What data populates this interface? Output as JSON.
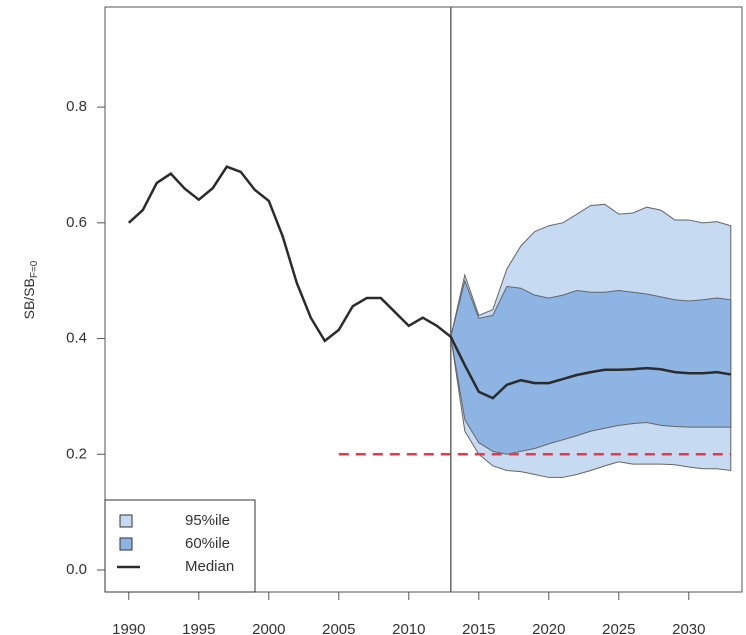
{
  "chart_data": {
    "type": "projection",
    "ylabel": "SB/SB",
    "ylabel_sub": "F=0",
    "xlim": [
      1988.3,
      2033.8
    ],
    "ylim": [
      -0.038,
      0.973
    ],
    "xticks": [
      1990,
      1995,
      2000,
      2005,
      2010,
      2015,
      2020,
      2025,
      2030
    ],
    "yticks": [
      {
        "value": 0,
        "label": "0.0"
      },
      0.2,
      0.4,
      0.6,
      0.8
    ],
    "vline": 2013,
    "reference_line": {
      "value": 0.2,
      "x": [
        2005,
        2033
      ],
      "color": "#e8384f"
    },
    "bands": [
      {
        "name": "95%ile",
        "color": "#c6daf2",
        "x": [
          2013,
          2014,
          2015,
          2016,
          2017,
          2018,
          2019,
          2020,
          2021,
          2022,
          2023,
          2024,
          2025,
          2026,
          2027,
          2028,
          2029,
          2030,
          2031,
          2032,
          2033
        ],
        "upper": [
          0.403,
          0.51,
          0.44,
          0.45,
          0.52,
          0.56,
          0.585,
          0.595,
          0.6,
          0.615,
          0.63,
          0.632,
          0.615,
          0.617,
          0.627,
          0.622,
          0.605,
          0.605,
          0.6,
          0.602,
          0.595
        ],
        "lower": [
          0.403,
          0.24,
          0.2,
          0.18,
          0.172,
          0.17,
          0.165,
          0.16,
          0.16,
          0.165,
          0.172,
          0.18,
          0.187,
          0.183,
          0.183,
          0.183,
          0.182,
          0.178,
          0.175,
          0.175,
          0.172
        ]
      },
      {
        "name": "60%ile",
        "color": "#8db4e2",
        "x": [
          2013,
          2014,
          2015,
          2016,
          2017,
          2018,
          2019,
          2020,
          2021,
          2022,
          2023,
          2024,
          2025,
          2026,
          2027,
          2028,
          2029,
          2030,
          2031,
          2032,
          2033
        ],
        "upper": [
          0.403,
          0.5,
          0.435,
          0.44,
          0.49,
          0.487,
          0.475,
          0.47,
          0.475,
          0.483,
          0.48,
          0.48,
          0.483,
          0.48,
          0.477,
          0.472,
          0.467,
          0.465,
          0.467,
          0.47,
          0.467
        ],
        "lower": [
          0.403,
          0.26,
          0.22,
          0.205,
          0.2,
          0.205,
          0.21,
          0.218,
          0.225,
          0.232,
          0.24,
          0.245,
          0.25,
          0.253,
          0.255,
          0.25,
          0.248,
          0.247,
          0.247,
          0.247,
          0.247
        ]
      }
    ],
    "series": [
      {
        "name": "Median",
        "color": "#2b2b2b",
        "x": [
          1990,
          1991,
          1992,
          1993,
          1994,
          1995,
          1996,
          1997,
          1998,
          1999,
          2000,
          2001,
          2002,
          2003,
          2004,
          2005,
          2006,
          2007,
          2008,
          2009,
          2010,
          2011,
          2012,
          2013,
          2014,
          2015,
          2016,
          2017,
          2018,
          2019,
          2020,
          2021,
          2022,
          2023,
          2024,
          2025,
          2026,
          2027,
          2028,
          2029,
          2030,
          2031,
          2032,
          2033
        ],
        "values": [
          0.6,
          0.622,
          0.669,
          0.685,
          0.659,
          0.64,
          0.66,
          0.697,
          0.688,
          0.657,
          0.638,
          0.576,
          0.496,
          0.436,
          0.396,
          0.415,
          0.456,
          0.47,
          0.47,
          0.446,
          0.422,
          0.436,
          0.422,
          0.403,
          0.354,
          0.308,
          0.297,
          0.32,
          0.328,
          0.323,
          0.323,
          0.33,
          0.337,
          0.342,
          0.346,
          0.346,
          0.347,
          0.349,
          0.347,
          0.342,
          0.34,
          0.34,
          0.342,
          0.338
        ]
      }
    ]
  }
}
